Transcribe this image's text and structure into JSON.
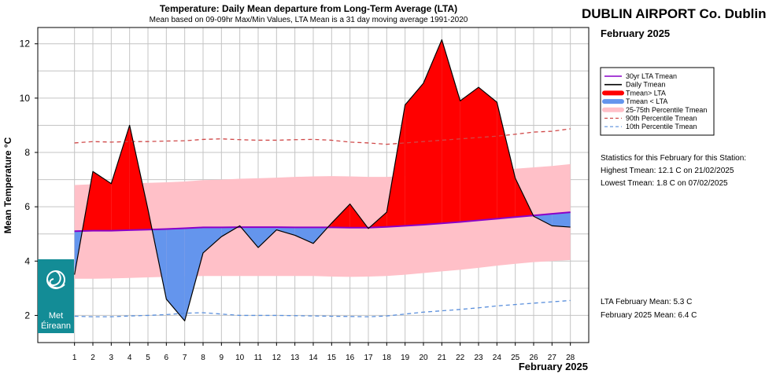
{
  "chart_data": {
    "type": "area",
    "title": "Temperature: Daily Mean departure from Long-Term Average (LTA)",
    "subtitle": "Mean based on 09-09hr Max/Min Values, LTA Mean is a 31 day moving average 1991-2020",
    "ylabel": "Mean Temperature °C",
    "xlabel": "February 2025",
    "x": [
      1,
      2,
      3,
      4,
      5,
      6,
      7,
      8,
      9,
      10,
      11,
      12,
      13,
      14,
      15,
      16,
      17,
      18,
      19,
      20,
      21,
      22,
      23,
      24,
      25,
      26,
      27,
      28
    ],
    "xlim": [
      -1,
      29
    ],
    "ylim": [
      1,
      12.6
    ],
    "yticks": [
      2,
      4,
      6,
      8,
      10,
      12
    ],
    "grid": true,
    "series": [
      {
        "name": "Daily Tmean",
        "values": [
          3.5,
          7.3,
          6.85,
          9.0,
          5.9,
          2.6,
          1.8,
          4.3,
          4.9,
          5.3,
          4.5,
          5.15,
          4.95,
          4.65,
          5.4,
          6.1,
          5.2,
          5.8,
          9.75,
          10.55,
          12.15,
          9.9,
          10.4,
          9.85,
          7.05,
          5.65,
          5.3,
          5.25
        ]
      },
      {
        "name": "30yr LTA Tmean",
        "values": [
          5.1,
          5.12,
          5.12,
          5.14,
          5.16,
          5.18,
          5.21,
          5.24,
          5.24,
          5.25,
          5.25,
          5.25,
          5.24,
          5.24,
          5.24,
          5.23,
          5.23,
          5.26,
          5.3,
          5.34,
          5.39,
          5.44,
          5.5,
          5.56,
          5.62,
          5.68,
          5.74,
          5.8
        ]
      },
      {
        "name": "25th Percentile Tmean",
        "values": [
          3.35,
          3.35,
          3.36,
          3.38,
          3.4,
          3.42,
          3.44,
          3.45,
          3.45,
          3.45,
          3.45,
          3.45,
          3.45,
          3.45,
          3.43,
          3.42,
          3.43,
          3.45,
          3.5,
          3.56,
          3.62,
          3.68,
          3.75,
          3.83,
          3.9,
          3.96,
          4.0,
          4.04
        ]
      },
      {
        "name": "75th Percentile Tmean",
        "values": [
          6.8,
          6.83,
          6.86,
          6.87,
          6.88,
          6.9,
          6.93,
          6.98,
          7.0,
          7.03,
          7.05,
          7.07,
          7.1,
          7.12,
          7.13,
          7.12,
          7.1,
          7.1,
          7.13,
          7.17,
          7.2,
          7.24,
          7.28,
          7.33,
          7.4,
          7.45,
          7.5,
          7.57
        ]
      },
      {
        "name": "90th Percentile Tmean",
        "values": [
          8.35,
          8.4,
          8.38,
          8.4,
          8.4,
          8.42,
          8.43,
          8.48,
          8.5,
          8.47,
          8.45,
          8.45,
          8.47,
          8.48,
          8.45,
          8.38,
          8.35,
          8.3,
          8.35,
          8.4,
          8.45,
          8.5,
          8.55,
          8.6,
          8.67,
          8.75,
          8.78,
          8.87
        ]
      },
      {
        "name": "10th Percentile Tmean",
        "values": [
          1.97,
          1.95,
          1.95,
          1.98,
          2.0,
          2.03,
          2.08,
          2.1,
          2.05,
          2.0,
          2.0,
          2.0,
          1.99,
          1.98,
          1.97,
          1.96,
          1.95,
          1.98,
          2.05,
          2.12,
          2.17,
          2.22,
          2.28,
          2.35,
          2.4,
          2.45,
          2.5,
          2.55
        ]
      }
    ]
  },
  "header": {
    "station": "DUBLIN AIRPORT Co. Dublin",
    "month": "February 2025"
  },
  "legend": {
    "items": [
      {
        "label": "30yr LTA Tmean",
        "kind": "line",
        "color": "#8a00c8"
      },
      {
        "label": "Daily Tmean",
        "kind": "line",
        "color": "#000000"
      },
      {
        "label": "Tmean> LTA",
        "kind": "thick",
        "color": "#ff0000"
      },
      {
        "label": "Tmean < LTA",
        "kind": "thick",
        "color": "#6495ed"
      },
      {
        "label": "25-75th Percentile Tmean",
        "kind": "thick",
        "color": "#ffc0c8"
      },
      {
        "label": "90th Percentile Tmean",
        "kind": "dash",
        "color": "#d04848"
      },
      {
        "label": "10th Percentile Tmean",
        "kind": "dash",
        "color": "#5a8fdc"
      }
    ]
  },
  "stats": {
    "heading": "Statistics for this February for this Station:",
    "highest": "Highest Tmean: 12.1 C on 21/02/2025",
    "lowest": "Lowest Tmean: 1.8 C on 07/02/2025",
    "lta_mean": "LTA February Mean: 5.3 C",
    "month_mean": "February 2025 Mean: 6.4 C"
  },
  "logo": {
    "line1": "Met",
    "line2": "Éireann"
  },
  "colors": {
    "above": "#ff0000",
    "below": "#6495ed",
    "band": "#ffc0c8",
    "lta": "#8a00c8",
    "p90": "#d04848",
    "p10": "#5a8fdc",
    "grid": "#c4c4c4",
    "logo_bg": "#138c96"
  }
}
